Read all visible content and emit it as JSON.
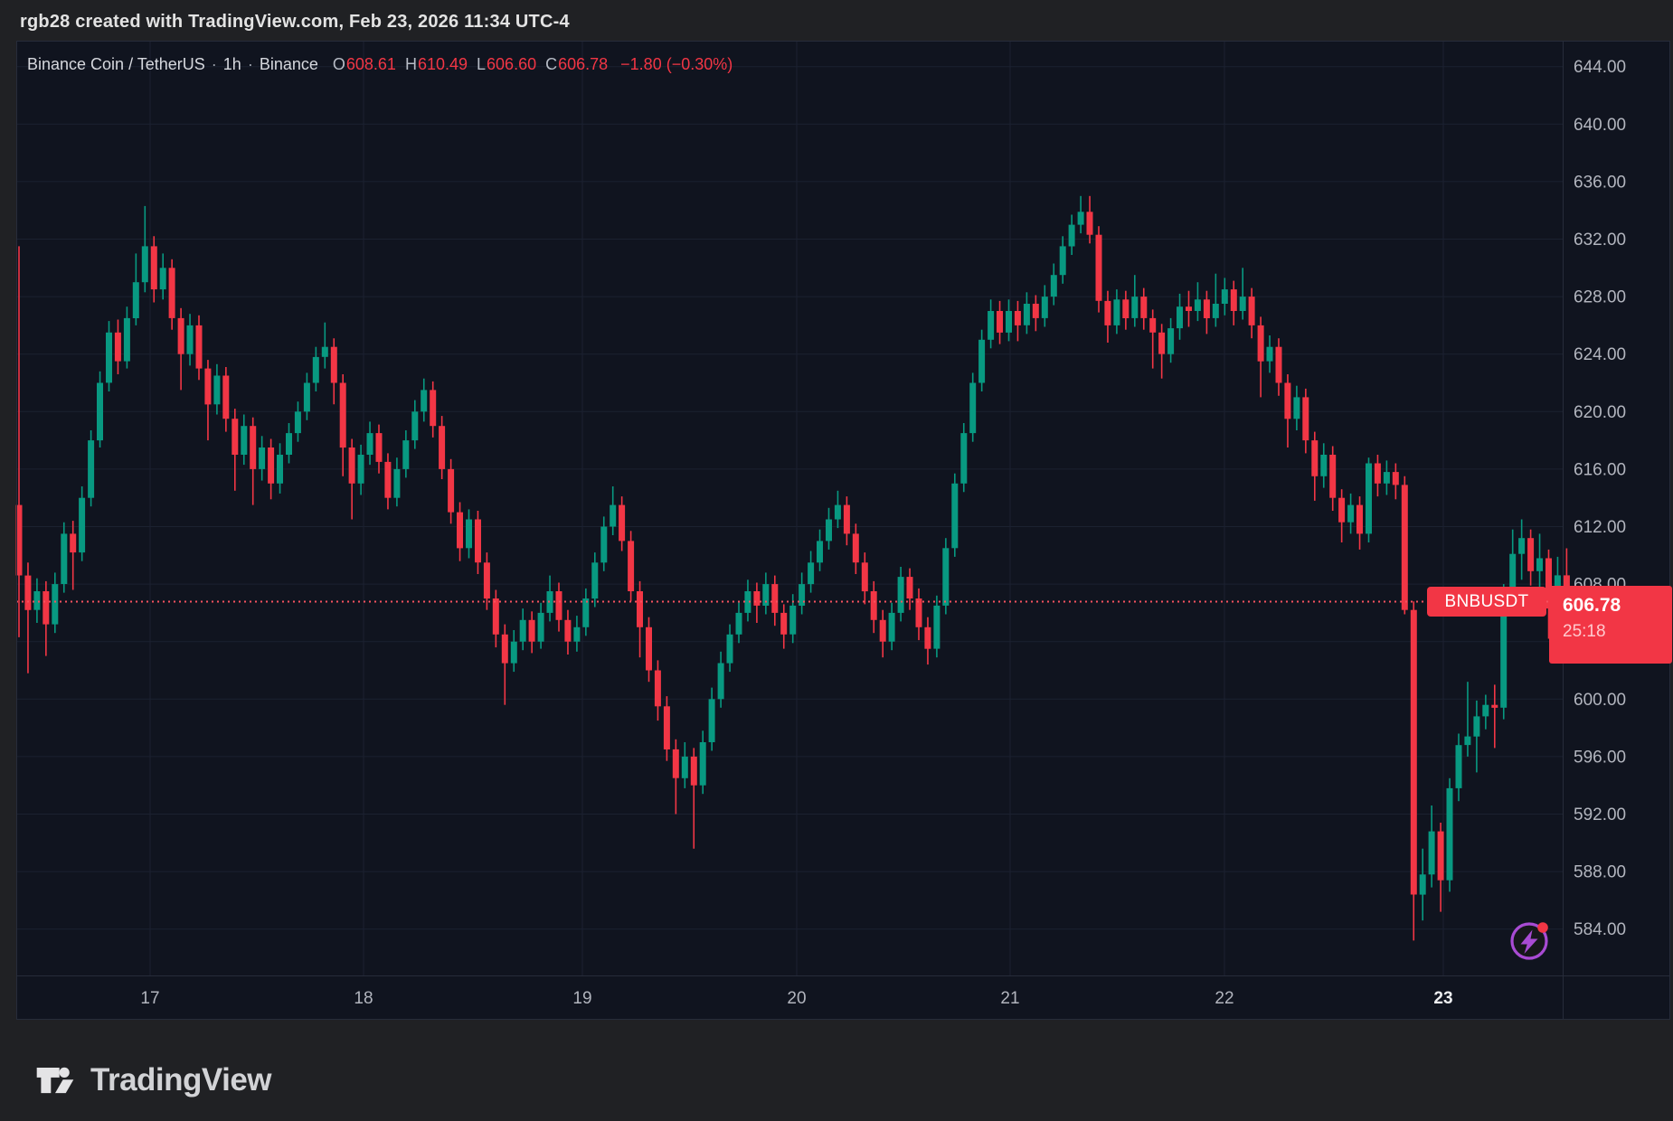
{
  "attribution": "rgb28 created with TradingView.com, Feb 23, 2026 11:34 UTC-4",
  "legend": {
    "symbol_title": "Binance Coin / TetherUS",
    "separator": "·",
    "interval": "1h",
    "exchange": "Binance",
    "o_label": "O",
    "o_value": "608.61",
    "h_label": "H",
    "h_value": "610.49",
    "l_label": "L",
    "l_value": "606.60",
    "c_label": "C",
    "c_value": "606.78",
    "change": "−1.80 (−0.30%)"
  },
  "price_marker": {
    "symbol": "BNBUSDT",
    "price": "606.78",
    "countdown": "25:18"
  },
  "footer": {
    "brand": "TradingView"
  },
  "icons": {
    "tradingview_logo": "tradingview-mark",
    "flash_icon": "lightning-bolt-in-circle",
    "notification_dot": "red-dot"
  },
  "colors": {
    "up": "#089981",
    "down": "#F23645",
    "chart_bg": "#10141F",
    "outer_bg": "#202124",
    "grid": "#1B2130",
    "border": "#272C3A",
    "axis_text": "#B2B5BE",
    "axis_text_bold": "#EDEEF0",
    "label_bg": "#F23645",
    "countdown_text": "#FFC9CE",
    "price_line": "#F7525F",
    "purple": "#A84BD3"
  },
  "chart_data": {
    "type": "candlestick",
    "title": "Binance Coin / TetherUS",
    "symbol": "BNBUSDT",
    "interval": "1h",
    "exchange": "Binance",
    "ohlc_readout": {
      "open": 608.61,
      "high": 610.49,
      "low": 606.6,
      "close": 606.78,
      "change": "−1.80",
      "change_pct": "−0.30%"
    },
    "last_price": 606.78,
    "countdown": "25:18",
    "price_line": {
      "value": 606.78,
      "style": "dotted"
    },
    "price_axis": {
      "min": 584,
      "max": 644,
      "step": 4,
      "ticks": [
        "584.00",
        "588.00",
        "592.00",
        "596.00",
        "600.00",
        "604.00",
        "608.00",
        "612.00",
        "616.00",
        "620.00",
        "624.00",
        "628.00",
        "632.00",
        "636.00",
        "640.00",
        "644.00"
      ]
    },
    "time_axis": {
      "ticks": [
        "17",
        "18",
        "19",
        "20",
        "21",
        "22",
        "23"
      ],
      "highlighted_tick": "23"
    },
    "grid": true,
    "candles": [
      [
        613.5,
        631.5,
        604.3,
        608.6
      ],
      [
        608.6,
        609.5,
        601.8,
        606.2
      ],
      [
        606.2,
        608.4,
        605.3,
        607.5
      ],
      [
        607.5,
        608.2,
        603.0,
        605.2
      ],
      [
        605.2,
        608.8,
        604.6,
        608.0
      ],
      [
        608.0,
        612.3,
        607.4,
        611.5
      ],
      [
        611.5,
        612.4,
        607.6,
        610.2
      ],
      [
        610.2,
        614.8,
        609.6,
        614.0
      ],
      [
        614.0,
        618.7,
        613.4,
        618.0
      ],
      [
        618.0,
        622.8,
        617.5,
        622.0
      ],
      [
        622.0,
        626.3,
        621.4,
        625.5
      ],
      [
        625.5,
        626.4,
        622.6,
        623.5
      ],
      [
        623.5,
        627.3,
        623.0,
        626.5
      ],
      [
        626.5,
        631.0,
        626.0,
        629.0
      ],
      [
        629.0,
        634.3,
        628.3,
        631.5
      ],
      [
        631.5,
        632.2,
        627.6,
        628.5
      ],
      [
        628.5,
        631.0,
        627.8,
        630.0
      ],
      [
        630.0,
        630.6,
        625.7,
        626.5
      ],
      [
        626.5,
        627.2,
        621.5,
        624.0
      ],
      [
        624.0,
        626.8,
        623.2,
        626.0
      ],
      [
        626.0,
        626.7,
        622.2,
        623.0
      ],
      [
        623.0,
        623.6,
        618.0,
        620.5
      ],
      [
        620.5,
        623.3,
        619.8,
        622.5
      ],
      [
        622.5,
        623.1,
        618.6,
        619.5
      ],
      [
        619.5,
        620.2,
        614.5,
        617.0
      ],
      [
        617.0,
        619.8,
        616.3,
        619.0
      ],
      [
        619.0,
        619.6,
        613.5,
        616.0
      ],
      [
        616.0,
        618.3,
        615.2,
        617.5
      ],
      [
        617.5,
        618.1,
        613.9,
        615.0
      ],
      [
        615.0,
        617.8,
        614.3,
        617.0
      ],
      [
        617.0,
        619.2,
        616.4,
        618.5
      ],
      [
        618.5,
        620.7,
        617.9,
        620.0
      ],
      [
        620.0,
        622.7,
        619.4,
        622.0
      ],
      [
        622.0,
        624.5,
        621.4,
        623.8
      ],
      [
        623.8,
        626.2,
        623.0,
        624.5
      ],
      [
        624.5,
        625.1,
        620.5,
        622.0
      ],
      [
        622.0,
        622.6,
        615.5,
        617.5
      ],
      [
        617.5,
        618.1,
        612.5,
        615.0
      ],
      [
        615.0,
        617.7,
        614.2,
        617.0
      ],
      [
        617.0,
        619.3,
        616.3,
        618.5
      ],
      [
        618.5,
        619.1,
        615.7,
        616.5
      ],
      [
        616.5,
        617.1,
        613.2,
        614.0
      ],
      [
        614.0,
        616.8,
        613.4,
        616.0
      ],
      [
        616.0,
        618.7,
        615.4,
        618.0
      ],
      [
        618.0,
        620.8,
        617.4,
        620.0
      ],
      [
        620.0,
        622.3,
        619.3,
        621.5
      ],
      [
        621.5,
        622.1,
        618.2,
        619.0
      ],
      [
        619.0,
        619.7,
        615.3,
        616.0
      ],
      [
        616.0,
        616.7,
        612.2,
        613.0
      ],
      [
        613.0,
        613.7,
        609.6,
        610.5
      ],
      [
        610.5,
        613.2,
        609.8,
        612.5
      ],
      [
        612.5,
        613.1,
        608.7,
        609.5
      ],
      [
        609.5,
        610.2,
        606.2,
        607.0
      ],
      [
        607.0,
        607.6,
        603.6,
        604.5
      ],
      [
        604.5,
        605.2,
        599.6,
        602.5
      ],
      [
        602.5,
        604.8,
        601.9,
        604.0
      ],
      [
        604.0,
        606.3,
        603.4,
        605.5
      ],
      [
        605.5,
        606.1,
        603.2,
        604.0
      ],
      [
        604.0,
        606.7,
        603.5,
        606.0
      ],
      [
        606.0,
        608.6,
        605.4,
        607.5
      ],
      [
        607.5,
        608.1,
        604.7,
        605.5
      ],
      [
        605.5,
        606.2,
        603.1,
        604.0
      ],
      [
        604.0,
        605.8,
        603.3,
        605.0
      ],
      [
        605.0,
        607.7,
        604.4,
        607.0
      ],
      [
        607.0,
        610.2,
        606.4,
        609.5
      ],
      [
        609.5,
        612.7,
        608.9,
        612.0
      ],
      [
        612.0,
        614.8,
        611.4,
        613.5
      ],
      [
        613.5,
        614.1,
        610.3,
        611.0
      ],
      [
        611.0,
        611.7,
        606.8,
        607.5
      ],
      [
        607.5,
        608.2,
        602.9,
        605.0
      ],
      [
        605.0,
        605.7,
        601.2,
        602.0
      ],
      [
        602.0,
        602.7,
        598.5,
        599.5
      ],
      [
        599.5,
        600.2,
        595.7,
        596.5
      ],
      [
        596.5,
        597.2,
        592.0,
        594.5
      ],
      [
        594.5,
        597.0,
        593.8,
        596.0
      ],
      [
        596.0,
        596.6,
        589.6,
        594.0
      ],
      [
        594.0,
        597.8,
        593.4,
        597.0
      ],
      [
        597.0,
        600.8,
        596.4,
        600.0
      ],
      [
        600.0,
        603.3,
        599.4,
        602.5
      ],
      [
        602.5,
        605.2,
        601.9,
        604.5
      ],
      [
        604.5,
        606.8,
        603.9,
        606.0
      ],
      [
        606.0,
        608.3,
        605.4,
        607.5
      ],
      [
        607.5,
        608.1,
        605.3,
        606.5
      ],
      [
        606.5,
        608.8,
        605.9,
        608.0
      ],
      [
        608.0,
        608.6,
        605.1,
        606.0
      ],
      [
        606.0,
        606.6,
        603.5,
        604.5
      ],
      [
        604.5,
        607.3,
        603.9,
        606.5
      ],
      [
        606.5,
        608.8,
        605.9,
        608.0
      ],
      [
        608.0,
        610.3,
        607.4,
        609.5
      ],
      [
        609.5,
        611.8,
        608.9,
        611.0
      ],
      [
        611.0,
        613.3,
        610.4,
        612.5
      ],
      [
        612.5,
        614.5,
        611.9,
        613.5
      ],
      [
        613.5,
        614.1,
        610.7,
        611.5
      ],
      [
        611.5,
        612.2,
        608.7,
        609.5
      ],
      [
        609.5,
        610.2,
        606.6,
        607.5
      ],
      [
        607.5,
        608.2,
        604.6,
        605.5
      ],
      [
        605.5,
        606.2,
        602.9,
        604.0
      ],
      [
        604.0,
        606.7,
        603.4,
        606.0
      ],
      [
        606.0,
        609.2,
        605.4,
        608.5
      ],
      [
        608.5,
        609.1,
        606.2,
        607.0
      ],
      [
        607.0,
        607.7,
        604.1,
        605.0
      ],
      [
        605.0,
        605.7,
        602.4,
        603.5
      ],
      [
        603.5,
        607.2,
        602.9,
        606.5
      ],
      [
        606.5,
        611.2,
        605.9,
        610.5
      ],
      [
        610.5,
        615.7,
        609.9,
        615.0
      ],
      [
        615.0,
        619.2,
        614.4,
        618.5
      ],
      [
        618.5,
        622.7,
        617.9,
        622.0
      ],
      [
        622.0,
        625.7,
        621.4,
        625.0
      ],
      [
        625.0,
        627.8,
        624.4,
        627.0
      ],
      [
        627.0,
        627.7,
        624.7,
        625.5
      ],
      [
        625.5,
        627.8,
        624.9,
        627.0
      ],
      [
        627.0,
        627.7,
        624.9,
        626.0
      ],
      [
        626.0,
        628.3,
        625.4,
        627.5
      ],
      [
        627.5,
        628.1,
        625.6,
        626.5
      ],
      [
        626.5,
        628.8,
        625.9,
        628.0
      ],
      [
        628.0,
        630.3,
        627.4,
        629.5
      ],
      [
        629.5,
        632.2,
        628.9,
        631.5
      ],
      [
        631.5,
        633.7,
        630.9,
        633.0
      ],
      [
        633.0,
        635.0,
        632.4,
        633.9
      ],
      [
        633.9,
        635.0,
        631.7,
        632.3
      ],
      [
        632.3,
        632.9,
        626.9,
        627.7
      ],
      [
        627.7,
        628.4,
        624.8,
        626.0
      ],
      [
        626.0,
        628.5,
        625.4,
        627.8
      ],
      [
        627.8,
        628.4,
        625.7,
        626.5
      ],
      [
        626.5,
        629.5,
        625.9,
        628.0
      ],
      [
        628.0,
        628.6,
        625.7,
        626.5
      ],
      [
        626.5,
        627.1,
        623.0,
        625.5
      ],
      [
        625.5,
        626.1,
        622.3,
        624.0
      ],
      [
        624.0,
        626.5,
        623.4,
        625.8
      ],
      [
        625.8,
        628.2,
        625.0,
        627.3
      ],
      [
        627.3,
        628.4,
        625.9,
        627.0
      ],
      [
        627.0,
        629.0,
        626.3,
        627.8
      ],
      [
        627.8,
        628.4,
        625.4,
        626.5
      ],
      [
        626.5,
        629.6,
        625.9,
        627.5
      ],
      [
        627.5,
        629.3,
        626.7,
        628.5
      ],
      [
        628.5,
        629.1,
        626.0,
        627.0
      ],
      [
        627.0,
        630.0,
        626.4,
        628.0
      ],
      [
        628.0,
        628.6,
        625.1,
        626.0
      ],
      [
        626.0,
        626.6,
        621.0,
        623.5
      ],
      [
        623.5,
        625.3,
        622.7,
        624.5
      ],
      [
        624.5,
        625.1,
        621.1,
        622.0
      ],
      [
        622.0,
        622.6,
        617.5,
        619.5
      ],
      [
        619.5,
        621.8,
        618.7,
        621.0
      ],
      [
        621.0,
        621.6,
        617.1,
        618.0
      ],
      [
        618.0,
        618.6,
        613.8,
        615.5
      ],
      [
        615.5,
        617.8,
        614.7,
        617.0
      ],
      [
        617.0,
        617.6,
        613.1,
        614.0
      ],
      [
        614.0,
        614.6,
        610.9,
        612.3
      ],
      [
        612.3,
        614.3,
        611.5,
        613.5
      ],
      [
        613.5,
        614.1,
        610.4,
        611.5
      ],
      [
        611.5,
        616.8,
        610.9,
        616.4
      ],
      [
        616.4,
        617.0,
        614.1,
        615.0
      ],
      [
        615.0,
        616.6,
        614.2,
        615.8
      ],
      [
        615.8,
        616.4,
        613.9,
        614.9
      ],
      [
        614.9,
        615.5,
        605.9,
        606.2
      ],
      [
        606.2,
        606.8,
        583.2,
        586.4
      ],
      [
        586.4,
        589.6,
        584.6,
        587.8
      ],
      [
        587.8,
        592.6,
        586.9,
        590.8
      ],
      [
        590.8,
        591.4,
        585.2,
        587.4
      ],
      [
        587.4,
        594.5,
        586.6,
        593.8
      ],
      [
        593.8,
        597.6,
        592.9,
        596.8
      ],
      [
        596.8,
        601.2,
        596.0,
        597.4
      ],
      [
        597.4,
        599.9,
        594.9,
        598.8
      ],
      [
        598.8,
        600.3,
        597.9,
        599.6
      ],
      [
        599.6,
        601.0,
        596.6,
        599.4
      ],
      [
        599.4,
        608.0,
        598.6,
        607.3
      ],
      [
        607.3,
        611.8,
        606.6,
        610.1
      ],
      [
        610.1,
        612.5,
        608.3,
        611.2
      ],
      [
        611.2,
        611.8,
        607.9,
        608.9
      ],
      [
        608.9,
        611.5,
        607.8,
        609.8
      ],
      [
        609.8,
        610.4,
        604.2,
        606.3
      ],
      [
        606.3,
        609.9,
        605.6,
        608.61
      ],
      [
        608.61,
        610.49,
        606.6,
        606.78
      ]
    ]
  }
}
